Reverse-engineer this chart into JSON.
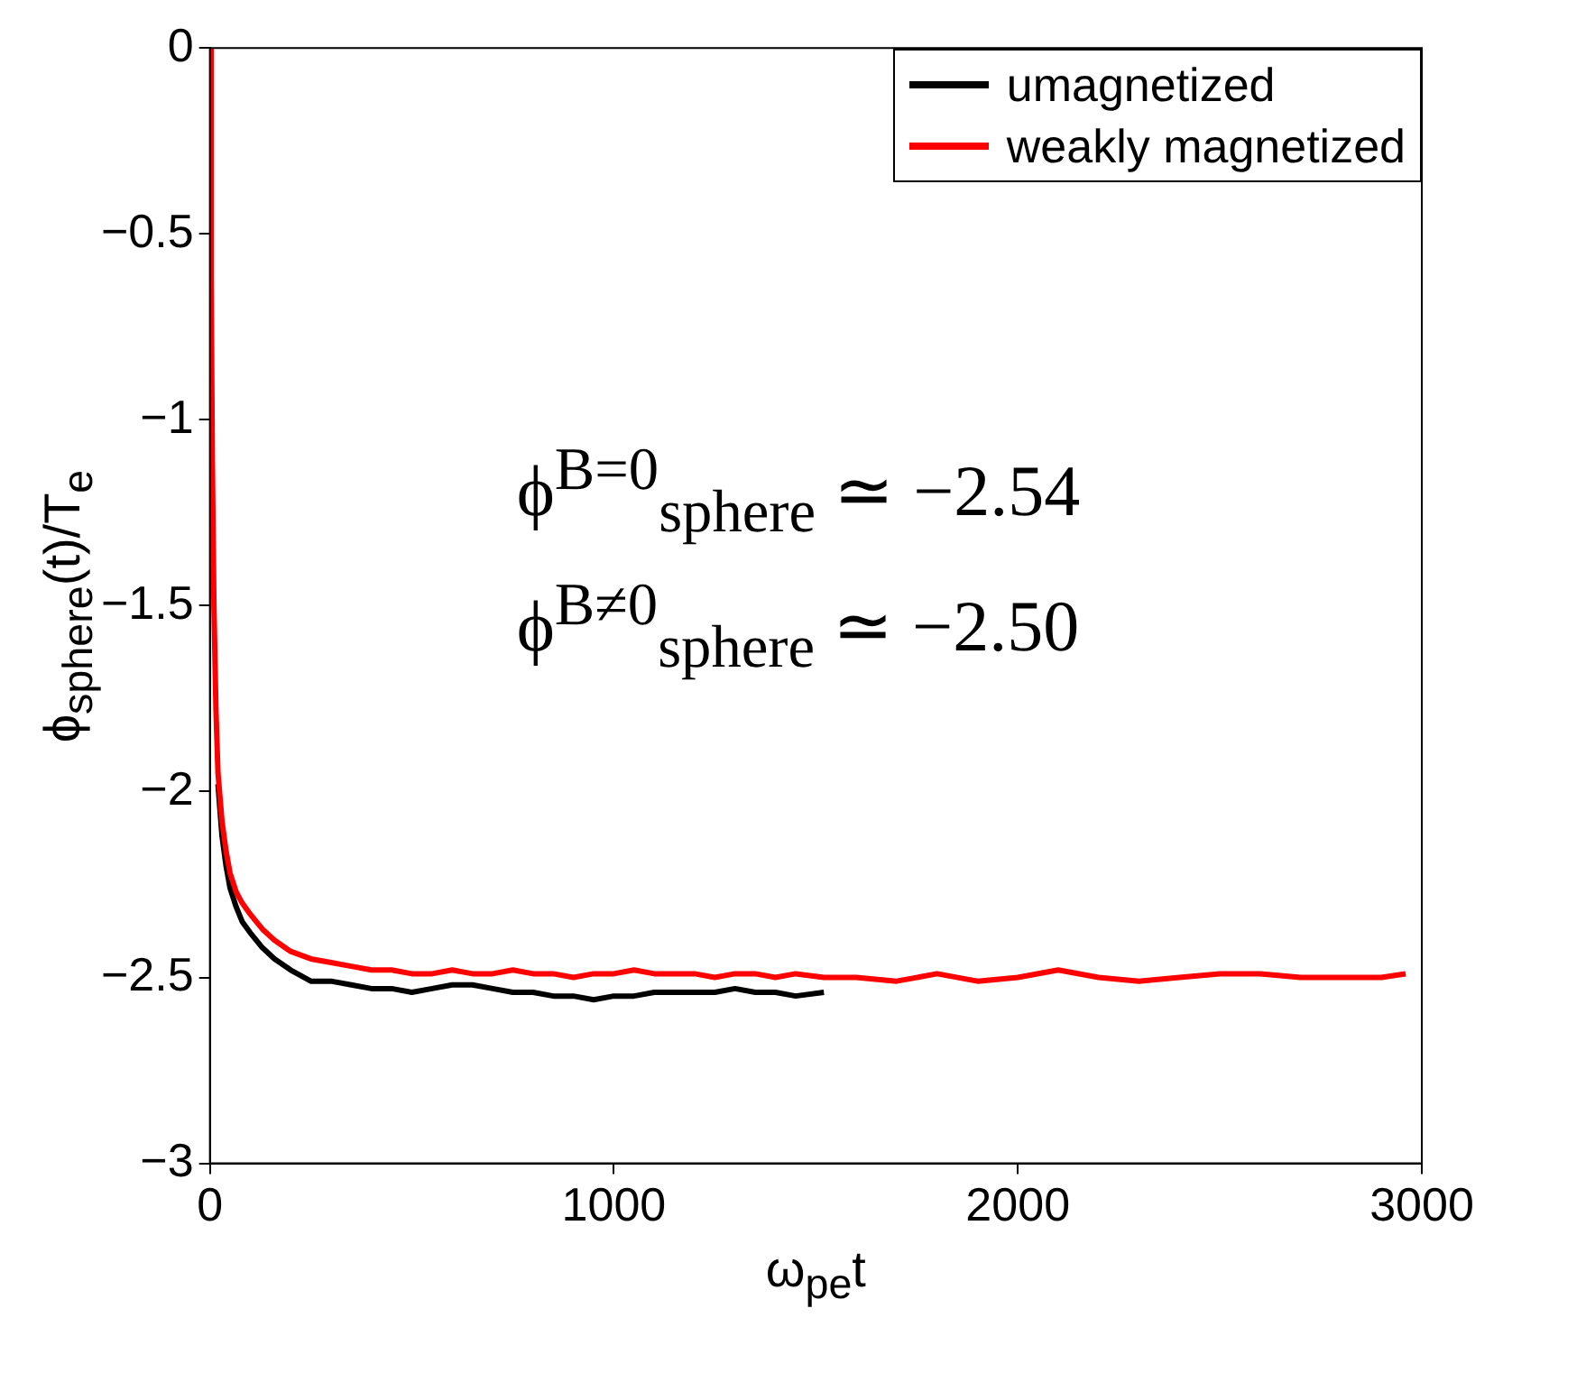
{
  "chart_data": {
    "type": "line",
    "xlabel": "ω$_{pe}$t",
    "ylabel": "ϕ$_{sphere}$(t)/T$_{e}$",
    "xlim": [
      0,
      3000
    ],
    "xticks": [
      0,
      1000,
      2000,
      3000
    ],
    "ylim": [
      -3,
      0
    ],
    "yticks": [
      0,
      -0.5,
      -1,
      -1.5,
      -2,
      -2.5,
      -3
    ],
    "grid": false,
    "legend": "top right",
    "marker": "none",
    "line_style": "solid",
    "annotations": [
      "ϕ$^{B=0}$$_{sphere}$ ≃ −2.54",
      "ϕ$^{B≠0}$$_{sphere}$ ≃ −2.50"
    ],
    "series": [
      {
        "name": "umagnetized",
        "color": "#000000",
        "x": [
          20,
          30,
          40,
          50,
          65,
          80,
          100,
          130,
          160,
          200,
          250,
          300,
          350,
          400,
          450,
          500,
          550,
          600,
          650,
          700,
          750,
          800,
          850,
          900,
          950,
          1000,
          1050,
          1100,
          1150,
          1200,
          1250,
          1300,
          1350,
          1400,
          1450,
          1520
        ],
        "values": [
          -1.98,
          -2.12,
          -2.2,
          -2.26,
          -2.31,
          -2.35,
          -2.38,
          -2.42,
          -2.45,
          -2.48,
          -2.51,
          -2.51,
          -2.52,
          -2.53,
          -2.53,
          -2.54,
          -2.53,
          -2.52,
          -2.52,
          -2.53,
          -2.54,
          -2.54,
          -2.55,
          -2.55,
          -2.56,
          -2.55,
          -2.55,
          -2.54,
          -2.54,
          -2.54,
          -2.54,
          -2.53,
          -2.54,
          -2.54,
          -2.55,
          -2.54
        ]
      },
      {
        "name": "weakly magnetized",
        "color": "#ff0000",
        "x": [
          0,
          3,
          6,
          10,
          15,
          20,
          30,
          40,
          50,
          65,
          80,
          100,
          130,
          160,
          200,
          250,
          300,
          350,
          400,
          450,
          500,
          550,
          600,
          650,
          700,
          750,
          800,
          850,
          900,
          950,
          1000,
          1050,
          1100,
          1150,
          1200,
          1250,
          1300,
          1350,
          1400,
          1450,
          1520,
          1600,
          1700,
          1800,
          1900,
          2000,
          2100,
          2200,
          2300,
          2400,
          2500,
          2600,
          2700,
          2800,
          2900,
          2960
        ],
        "values": [
          0,
          -0.6,
          -1.1,
          -1.5,
          -1.78,
          -1.95,
          -2.08,
          -2.16,
          -2.22,
          -2.27,
          -2.3,
          -2.33,
          -2.37,
          -2.4,
          -2.43,
          -2.45,
          -2.46,
          -2.47,
          -2.48,
          -2.48,
          -2.49,
          -2.49,
          -2.48,
          -2.49,
          -2.49,
          -2.48,
          -2.49,
          -2.49,
          -2.5,
          -2.49,
          -2.49,
          -2.48,
          -2.49,
          -2.49,
          -2.49,
          -2.5,
          -2.49,
          -2.49,
          -2.5,
          -2.49,
          -2.5,
          -2.5,
          -2.51,
          -2.49,
          -2.51,
          -2.5,
          -2.48,
          -2.5,
          -2.51,
          -2.5,
          -2.49,
          -2.49,
          -2.5,
          -2.5,
          -2.5,
          -2.49
        ]
      }
    ]
  }
}
